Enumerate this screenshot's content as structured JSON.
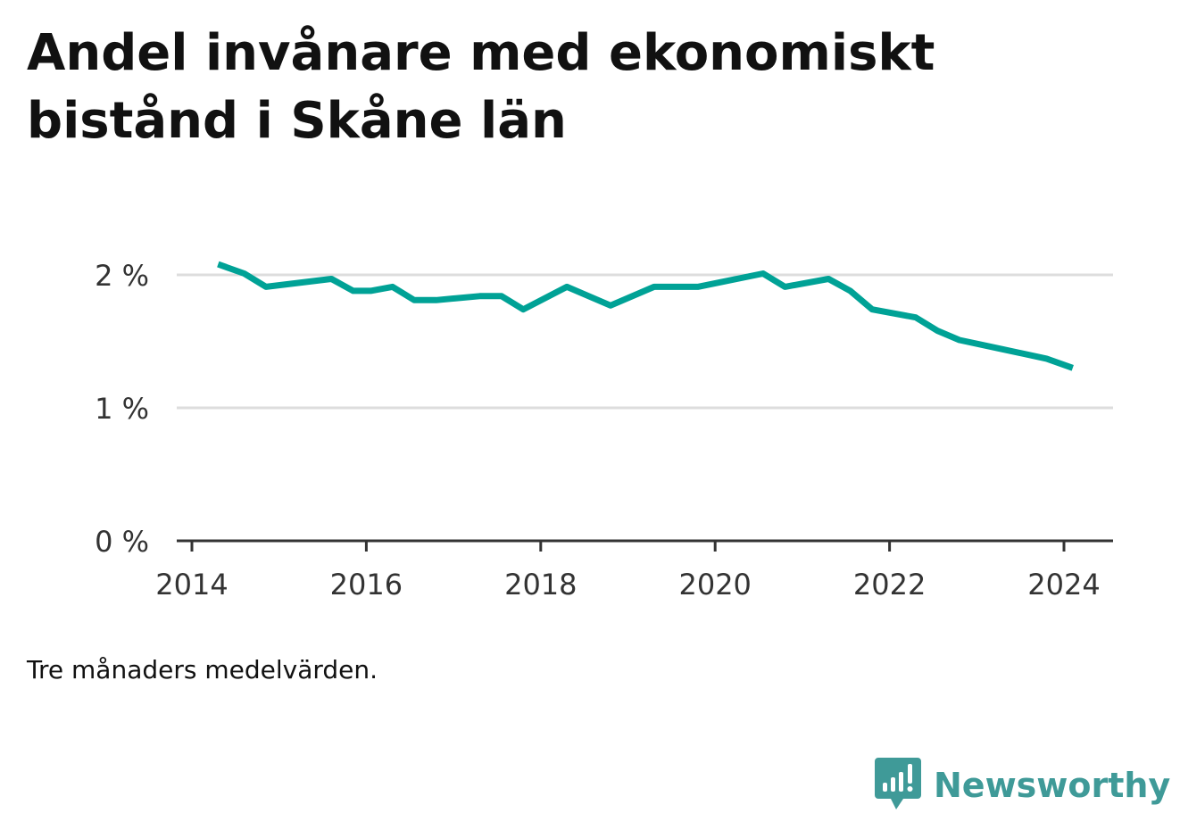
{
  "title": "Andel invånare med ekonomiskt bistånd i Skåne län",
  "note": "Tre månaders medelvärden.",
  "brand": {
    "name": "Newsworthy",
    "icon": "newsworthy-logo-icon",
    "color": "#3f9a98"
  },
  "colors": {
    "line": "#00a296",
    "grid": "#dddddd",
    "axis": "#333333"
  },
  "chart_data": {
    "type": "line",
    "title": "Andel invånare med ekonomiskt bistånd i Skåne län",
    "xlabel": "",
    "ylabel": "",
    "x_unit": "year",
    "xlim": [
      2014,
      2024.6
    ],
    "ylim": [
      0,
      2
    ],
    "x_ticks": [
      2014,
      2016,
      2018,
      2020,
      2022,
      2024
    ],
    "x_tick_labels": [
      "2014",
      "2016",
      "2018",
      "2020",
      "2022",
      "2024"
    ],
    "y_ticks": [
      0,
      1,
      2
    ],
    "y_tick_labels": [
      "0 %",
      "1 %",
      "2 %"
    ],
    "grid": "horizontal",
    "legend": "none",
    "series": [
      {
        "x": [
          2014.3,
          2014.6,
          2014.85,
          2015.6,
          2015.85,
          2016.05,
          2016.3,
          2016.55,
          2016.8,
          2017.3,
          2017.55,
          2017.8,
          2018.3,
          2018.8,
          2019.3,
          2019.55,
          2019.8,
          2020.55,
          2020.8,
          2021.3,
          2021.55,
          2021.8,
          2022.3,
          2022.55,
          2022.8,
          2023.3,
          2023.8,
          2024.1
        ],
        "y": [
          2.08,
          2.01,
          1.91,
          1.97,
          1.88,
          1.88,
          1.91,
          1.81,
          1.81,
          1.84,
          1.84,
          1.74,
          1.91,
          1.77,
          1.91,
          1.91,
          1.91,
          2.01,
          1.91,
          1.97,
          1.88,
          1.74,
          1.68,
          1.58,
          1.51,
          1.44,
          1.37,
          1.3
        ]
      }
    ]
  }
}
